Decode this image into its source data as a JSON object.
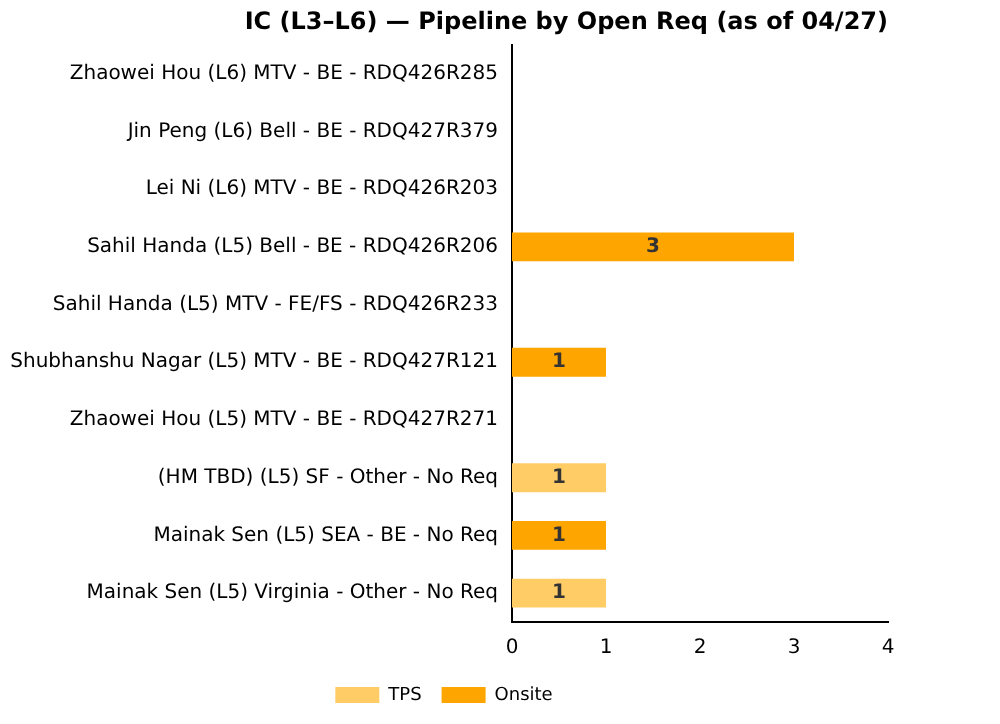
{
  "chart_data": {
    "type": "bar",
    "orientation": "horizontal",
    "stacked": true,
    "title": "IC (L3–L6) — Pipeline by Open Req (as of 04/27)",
    "categories": [
      "Zhaowei Hou (L6) MTV - BE - RDQ426R285",
      "Jin Peng (L6) Bell - BE - RDQ427R379",
      "Lei Ni (L6) MTV - BE - RDQ426R203",
      "Sahil Handa (L5) Bell - BE - RDQ426R206",
      "Sahil Handa (L5) MTV - FE/FS - RDQ426R233",
      "Shubhanshu Nagar (L5) MTV - BE - RDQ427R121",
      "Zhaowei Hou (L5) MTV - BE - RDQ427R271",
      "(HM TBD) (L5) SF - Other - No Req",
      "Mainak Sen (L5) SEA - BE - No Req",
      "Mainak Sen (L5) Virginia - Other - No Req"
    ],
    "series": [
      {
        "name": "TPS",
        "color": "#ffcc66",
        "values": [
          null,
          null,
          null,
          null,
          null,
          null,
          null,
          1,
          null,
          1
        ]
      },
      {
        "name": "Onsite",
        "color": "#ffa500",
        "values": [
          null,
          null,
          null,
          3,
          null,
          1,
          null,
          null,
          1,
          null
        ]
      }
    ],
    "xlim": [
      0,
      4
    ],
    "xticks": [
      0,
      1,
      2,
      3,
      4
    ],
    "grid": false,
    "legend": "bottom",
    "data_labels": true
  }
}
